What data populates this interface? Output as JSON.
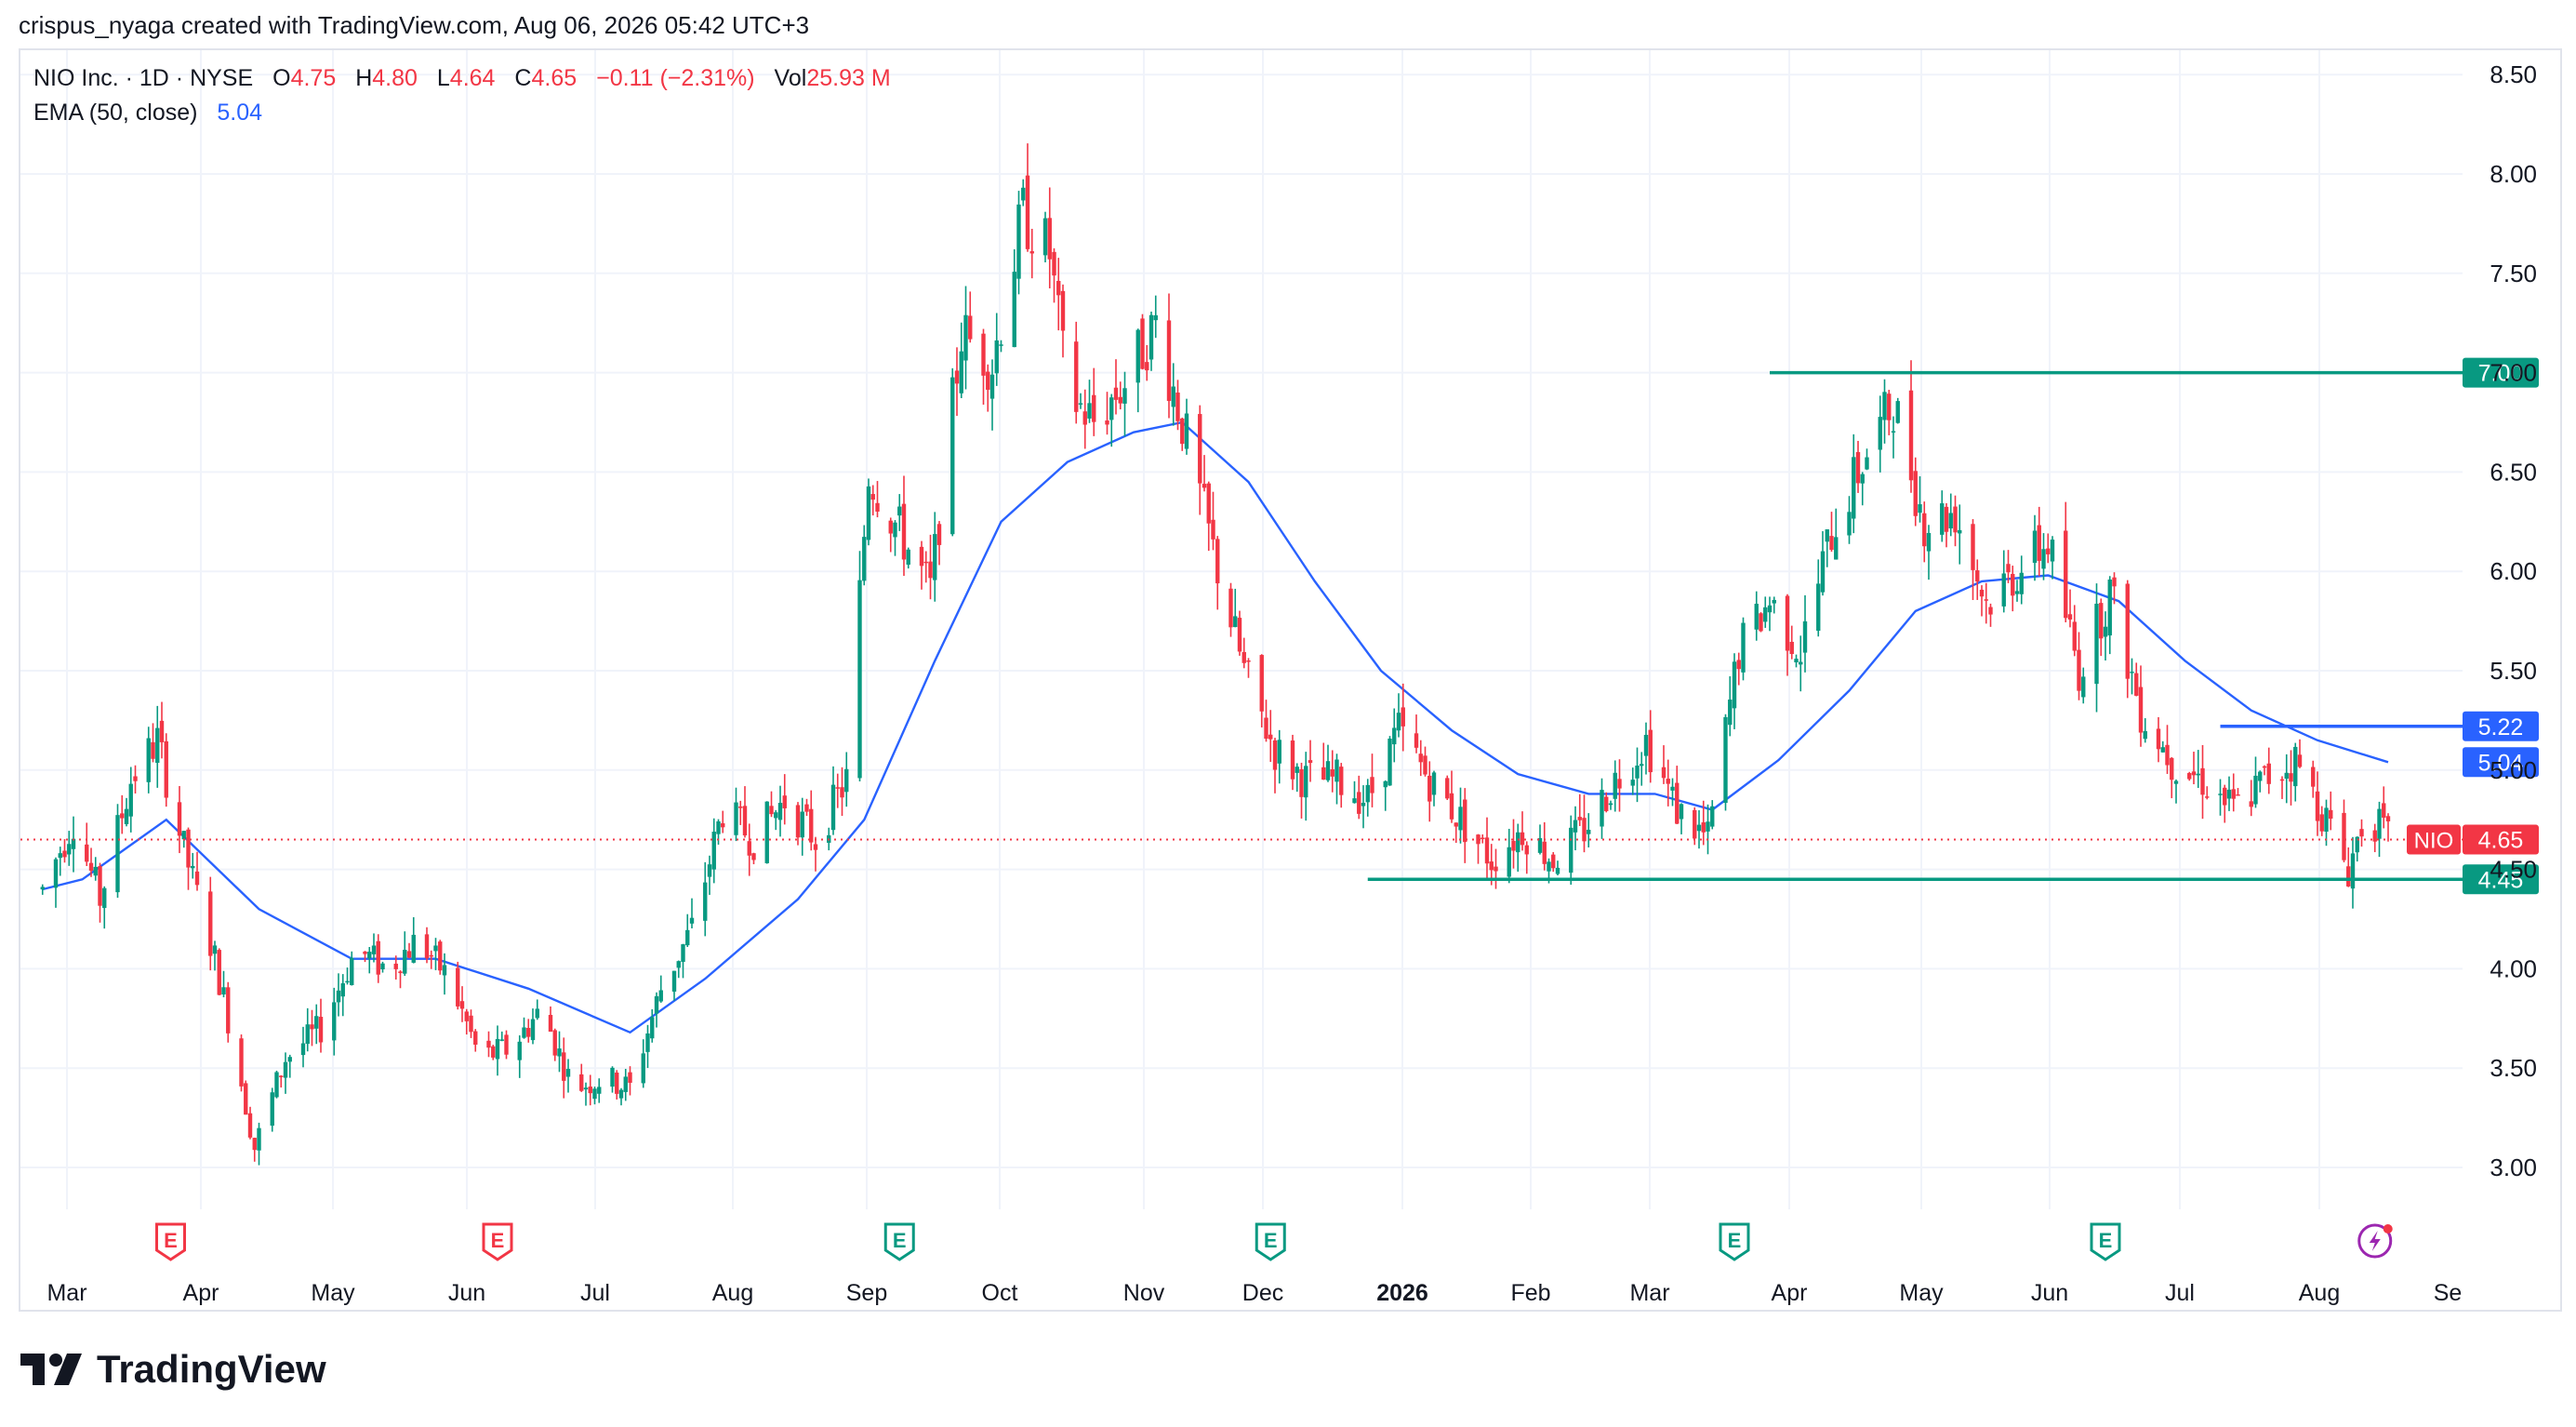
{
  "attribution": "crispus_nyaga created with TradingView.com, Aug 06, 2026 05:42 UTC+3",
  "legend": {
    "symbol": "NIO Inc. · 1D · NYSE",
    "open_label": "O",
    "open": "4.75",
    "high_label": "H",
    "high": "4.80",
    "low_label": "L",
    "low": "4.64",
    "close_label": "C",
    "close": "4.65",
    "change": "−0.11 (−2.31%)",
    "vol_label": "Vol",
    "vol": "25.93 M",
    "ema_label": "EMA (50, close)",
    "ema_value": "5.04"
  },
  "footer": {
    "brand": "TradingView"
  },
  "colors": {
    "up": "#089981",
    "down": "#f23645",
    "ema": "#2962ff",
    "support": "#089981",
    "resistance": "#2962ff",
    "grid": "#f0f3fa"
  },
  "chart_data": {
    "type": "candlestick",
    "symbol": "NIO",
    "ylim": [
      2.5,
      8.7
    ],
    "y_ticks": [
      "3.00",
      "3.50",
      "4.00",
      "4.50",
      "5.00",
      "5.50",
      "6.00",
      "6.50",
      "7.00",
      "7.50",
      "8.00",
      "8.50"
    ],
    "x_ticks": [
      "Mar",
      "Apr",
      "May",
      "Jun",
      "Jul",
      "Aug",
      "Sep",
      "Oct",
      "Nov",
      "Dec",
      "2026",
      "Feb",
      "Mar",
      "Apr",
      "May",
      "Jun",
      "Jul",
      "Aug",
      "Se"
    ],
    "price_path": [
      [
        "2025-02-20",
        4.4
      ],
      [
        "2025-02-27",
        4.75
      ],
      [
        "2025-03-05",
        4.35
      ],
      [
        "2025-03-12",
        4.95
      ],
      [
        "2025-03-18",
        5.15
      ],
      [
        "2025-03-24",
        4.6
      ],
      [
        "2025-03-31",
        4.05
      ],
      [
        "2025-04-04",
        3.65
      ],
      [
        "2025-04-09",
        3.1
      ],
      [
        "2025-04-16",
        3.55
      ],
      [
        "2025-04-24",
        3.7
      ],
      [
        "2025-05-02",
        4.1
      ],
      [
        "2025-05-09",
        4.0
      ],
      [
        "2025-05-16",
        4.15
      ],
      [
        "2025-05-23",
        3.95
      ],
      [
        "2025-05-30",
        3.55
      ],
      [
        "2025-06-06",
        3.6
      ],
      [
        "2025-06-13",
        3.8
      ],
      [
        "2025-06-20",
        3.4
      ],
      [
        "2025-06-27",
        3.45
      ],
      [
        "2025-07-03",
        3.4
      ],
      [
        "2025-07-10",
        3.9
      ],
      [
        "2025-07-17",
        4.2
      ],
      [
        "2025-07-24",
        4.8
      ],
      [
        "2025-07-31",
        4.65
      ],
      [
        "2025-08-07",
        4.85
      ],
      [
        "2025-08-14",
        4.65
      ],
      [
        "2025-08-21",
        4.95
      ],
      [
        "2025-08-26",
        6.5
      ],
      [
        "2025-09-02",
        6.2
      ],
      [
        "2025-09-09",
        5.9
      ],
      [
        "2025-09-16",
        7.2
      ],
      [
        "2025-09-23",
        7.05
      ],
      [
        "2025-09-30",
        7.8
      ],
      [
        "2025-10-06",
        7.6
      ],
      [
        "2025-10-10",
        6.9
      ],
      [
        "2025-10-16",
        6.75
      ],
      [
        "2025-10-23",
        6.95
      ],
      [
        "2025-10-30",
        7.25
      ],
      [
        "2025-11-05",
        6.75
      ],
      [
        "2025-11-12",
        6.1
      ],
      [
        "2025-11-19",
        5.5
      ],
      [
        "2025-11-26",
        5.1
      ],
      [
        "2025-12-03",
        4.95
      ],
      [
        "2025-12-10",
        4.95
      ],
      [
        "2025-12-17",
        4.85
      ],
      [
        "2025-12-24",
        5.2
      ],
      [
        "2025-12-31",
        4.95
      ],
      [
        "2026-01-07",
        4.75
      ],
      [
        "2026-01-14",
        4.55
      ],
      [
        "2026-01-21",
        4.7
      ],
      [
        "2026-01-28",
        4.55
      ],
      [
        "2026-02-04",
        4.7
      ],
      [
        "2026-02-11",
        4.95
      ],
      [
        "2026-02-18",
        5.15
      ],
      [
        "2026-02-25",
        4.8
      ],
      [
        "2026-03-04",
        4.65
      ],
      [
        "2026-03-11",
        5.6
      ],
      [
        "2026-03-18",
        5.85
      ],
      [
        "2026-03-25",
        5.6
      ],
      [
        "2026-04-01",
        6.2
      ],
      [
        "2026-04-08",
        6.55
      ],
      [
        "2026-04-15",
        6.85
      ],
      [
        "2026-04-22",
        6.25
      ],
      [
        "2026-04-29",
        6.3
      ],
      [
        "2026-05-06",
        5.85
      ],
      [
        "2026-05-13",
        6.0
      ],
      [
        "2026-05-20",
        6.15
      ],
      [
        "2026-05-27",
        5.5
      ],
      [
        "2026-06-03",
        5.9
      ],
      [
        "2026-06-10",
        5.3
      ],
      [
        "2026-06-17",
        5.05
      ],
      [
        "2026-06-24",
        4.95
      ],
      [
        "2026-07-01",
        4.8
      ],
      [
        "2026-07-08",
        4.95
      ],
      [
        "2026-07-15",
        5.05
      ],
      [
        "2026-07-22",
        4.75
      ],
      [
        "2026-07-27",
        4.5
      ],
      [
        "2026-07-31",
        4.8
      ],
      [
        "2026-08-05",
        4.65
      ]
    ],
    "ema_series": [
      [
        "2025-02-20",
        4.4
      ],
      [
        "2025-03-01",
        4.45
      ],
      [
        "2025-03-20",
        4.75
      ],
      [
        "2025-04-10",
        4.3
      ],
      [
        "2025-05-01",
        4.05
      ],
      [
        "2025-05-20",
        4.05
      ],
      [
        "2025-06-10",
        3.9
      ],
      [
        "2025-07-03",
        3.68
      ],
      [
        "2025-07-20",
        3.95
      ],
      [
        "2025-08-10",
        4.35
      ],
      [
        "2025-08-25",
        4.75
      ],
      [
        "2025-09-10",
        5.55
      ],
      [
        "2025-09-25",
        6.25
      ],
      [
        "2025-10-10",
        6.55
      ],
      [
        "2025-10-25",
        6.7
      ],
      [
        "2025-11-05",
        6.75
      ],
      [
        "2025-11-20",
        6.45
      ],
      [
        "2025-12-05",
        5.95
      ],
      [
        "2025-12-20",
        5.5
      ],
      [
        "2026-01-05",
        5.2
      ],
      [
        "2026-01-20",
        4.98
      ],
      [
        "2026-02-05",
        4.88
      ],
      [
        "2026-02-20",
        4.88
      ],
      [
        "2026-03-05",
        4.8
      ],
      [
        "2026-03-20",
        5.05
      ],
      [
        "2026-04-05",
        5.4
      ],
      [
        "2026-04-20",
        5.8
      ],
      [
        "2026-05-05",
        5.95
      ],
      [
        "2026-05-20",
        5.98
      ],
      [
        "2026-06-05",
        5.85
      ],
      [
        "2026-06-20",
        5.55
      ],
      [
        "2026-07-05",
        5.3
      ],
      [
        "2026-07-20",
        5.15
      ],
      [
        "2026-08-05",
        5.04
      ]
    ],
    "earnings_markers": [
      {
        "date": "2025-03-21",
        "label": "E",
        "kind": "past"
      },
      {
        "date": "2025-06-03",
        "label": "E",
        "kind": "past"
      },
      {
        "date": "2025-09-02",
        "label": "E",
        "kind": "future"
      },
      {
        "date": "2025-11-25",
        "label": "E",
        "kind": "future"
      },
      {
        "date": "2026-03-10",
        "label": "E",
        "kind": "future"
      },
      {
        "date": "2026-06-02",
        "label": "E",
        "kind": "future"
      },
      {
        "date": "2026-08-02",
        "label": "",
        "kind": "flash"
      }
    ],
    "lines": [
      {
        "name": "resistance-7-00",
        "price": 7.0,
        "from": "2026-03-18",
        "to": "2026-08-30",
        "color": "#089981",
        "label": "7.00"
      },
      {
        "name": "resistance-5-22",
        "price": 5.22,
        "from": "2026-06-28",
        "to": "2026-08-30",
        "color": "#2962ff",
        "label": "5.22"
      },
      {
        "name": "support-4-45",
        "price": 4.45,
        "from": "2025-12-17",
        "to": "2026-08-30",
        "color": "#089981",
        "label": "4.45"
      }
    ],
    "ema_tag": {
      "price": 5.04,
      "label": "5.04"
    },
    "last_price": {
      "price": 4.65,
      "symbol": "NIO",
      "label": "4.65"
    }
  }
}
